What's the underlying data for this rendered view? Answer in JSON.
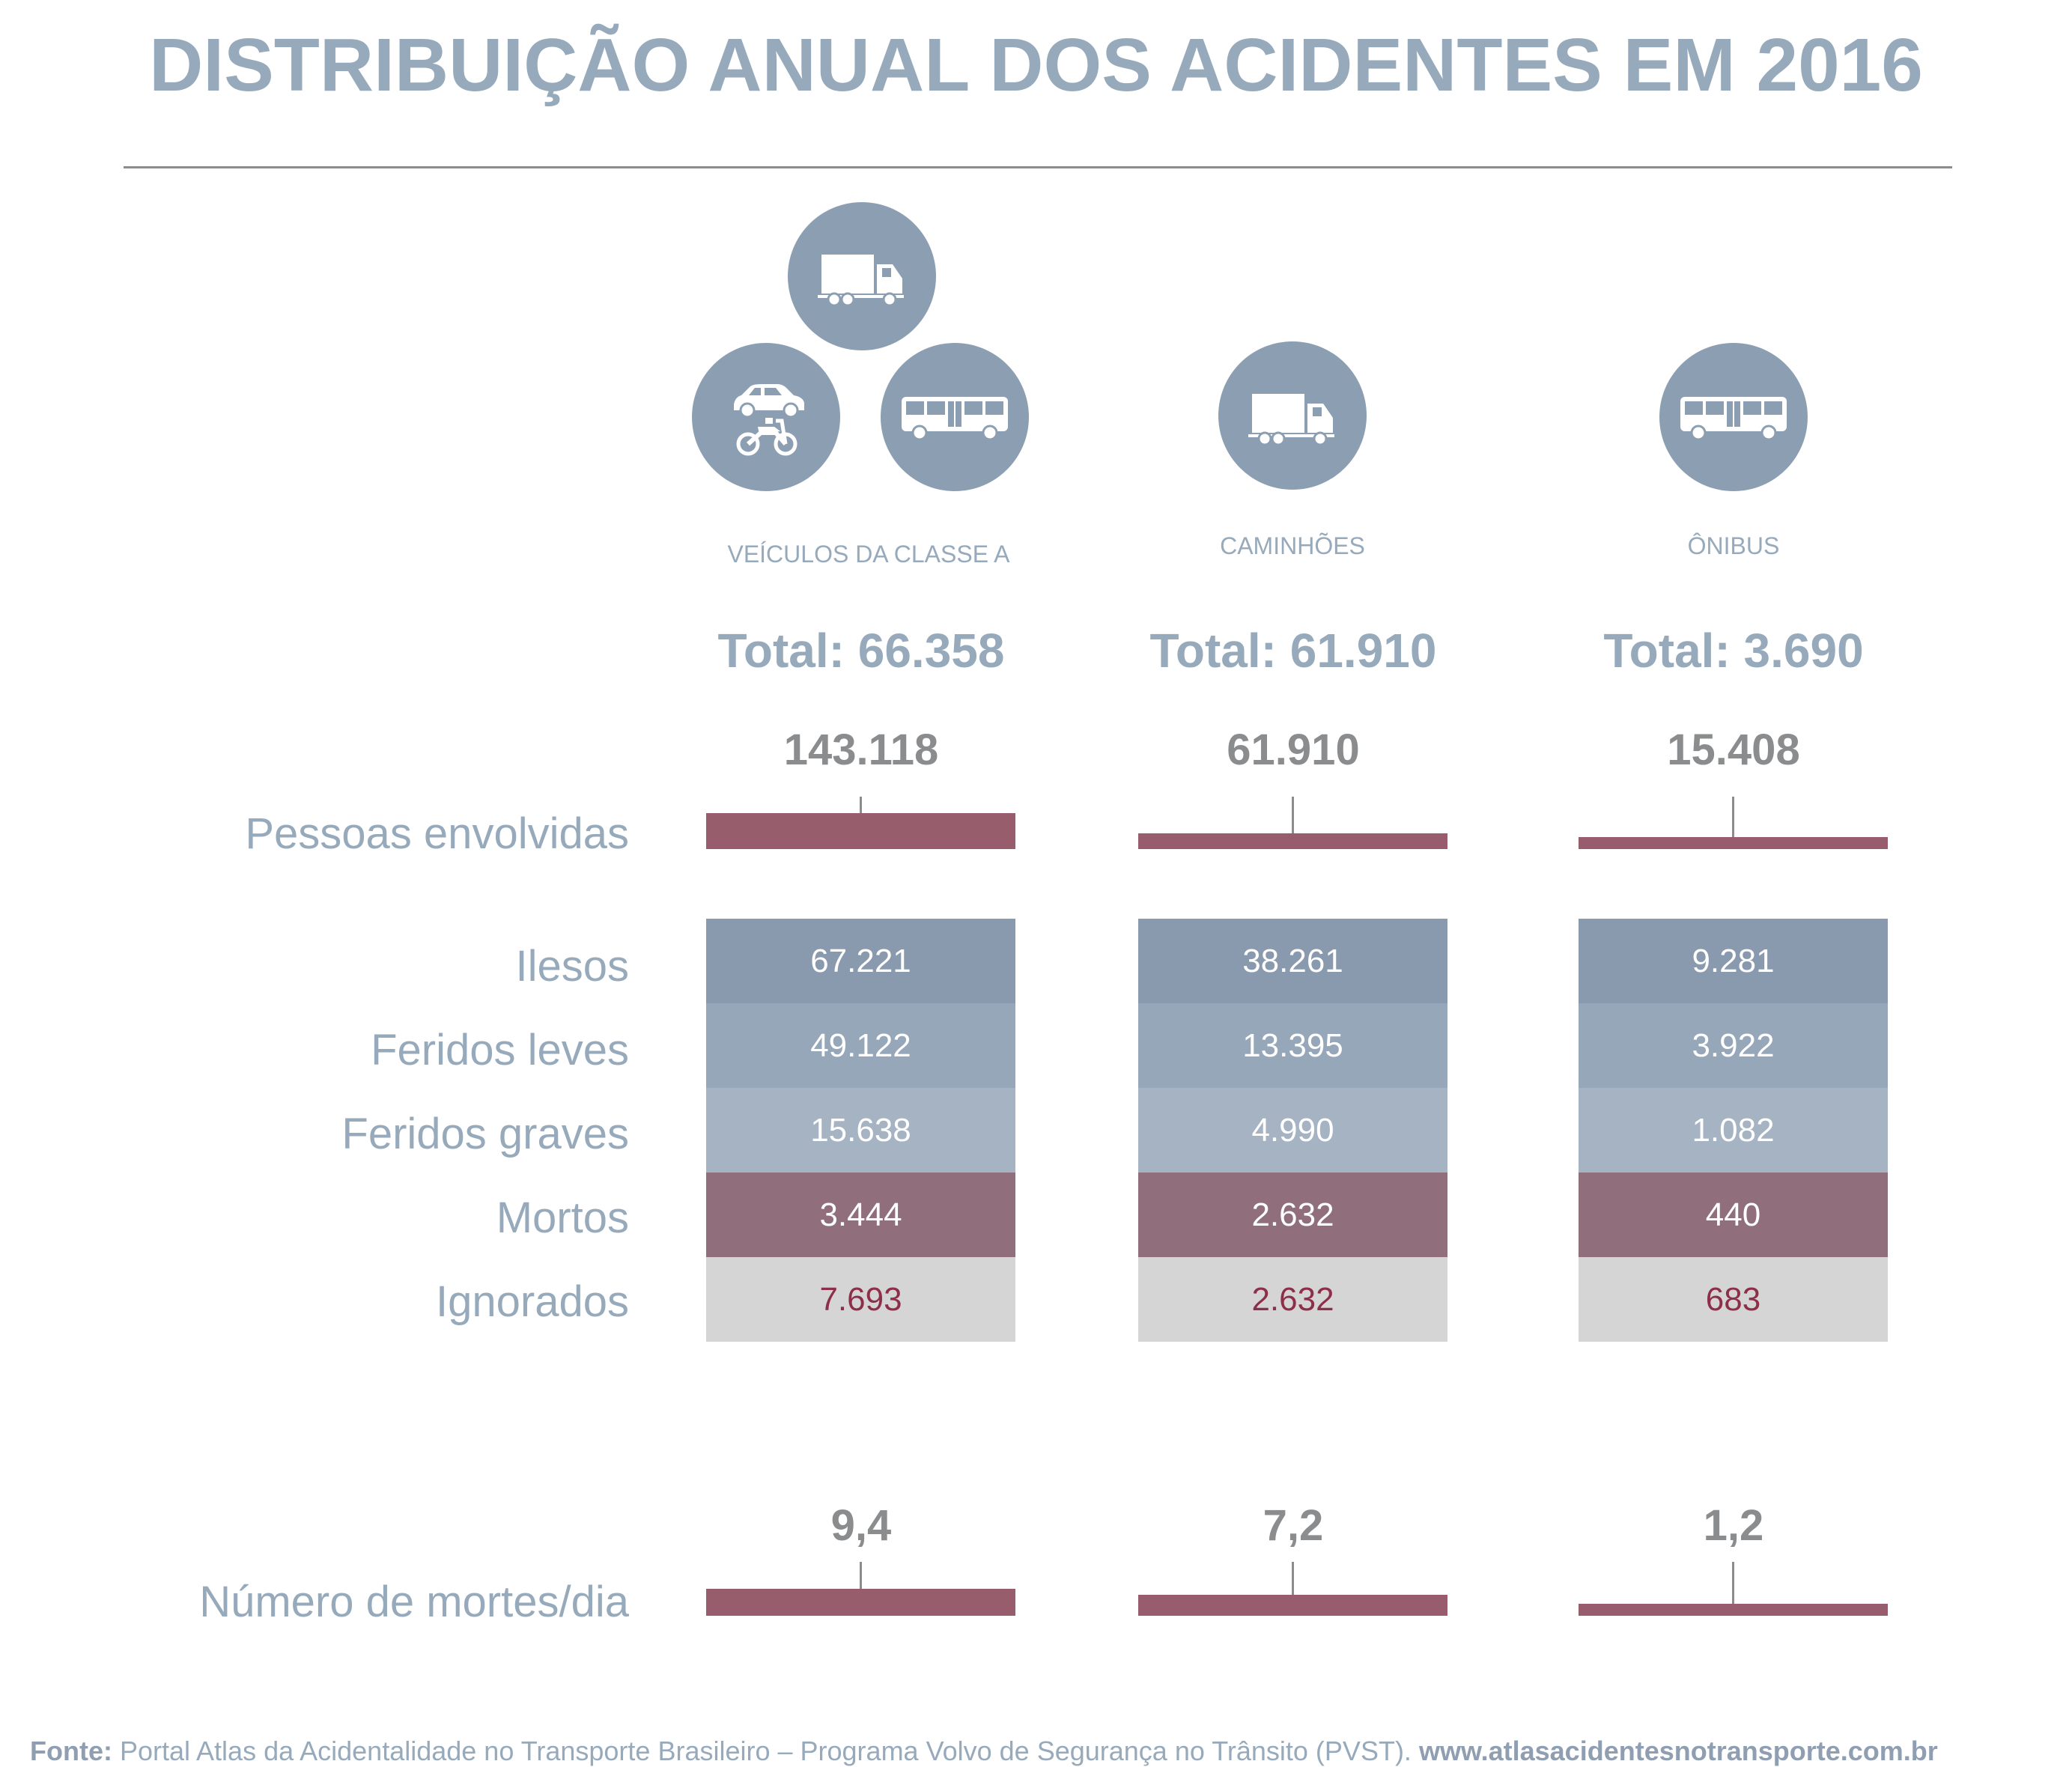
{
  "title": "DISTRIBUIÇÃO ANUAL DOS ACIDENTES EM 2016",
  "chart_data": {
    "type": "table",
    "categories": [
      "VEÍCULOS DA CLASSE A",
      "CAMINHÕES",
      "ÔNIBUS"
    ],
    "totals_label": [
      "Total: 66.358",
      "Total: 61.910",
      "Total: 3.690"
    ],
    "pessoas_envolvidas": {
      "label": "Pessoas envolvidas",
      "values": [
        143118,
        61910,
        15408
      ],
      "display": [
        "143.118",
        "61.910",
        "15.408"
      ]
    },
    "breakdown": {
      "rows": [
        {
          "label": "Ilesos",
          "display": [
            "67.221",
            "38.261",
            "9.281"
          ]
        },
        {
          "label": "Feridos leves",
          "display": [
            "49.122",
            "13.395",
            "3.922"
          ]
        },
        {
          "label": "Feridos graves",
          "display": [
            "15.638",
            "4.990",
            "1.082"
          ]
        },
        {
          "label": "Mortos",
          "display": [
            "3.444",
            "2.632",
            "440"
          ]
        },
        {
          "label": "Ignorados",
          "display": [
            "7.693",
            "2.632",
            "683"
          ]
        }
      ]
    },
    "mortes_dia": {
      "label": "Número de mortes/dia",
      "values": [
        9.4,
        7.2,
        1.2
      ],
      "display": [
        "9,4",
        "7,2",
        "1,2"
      ]
    }
  },
  "icons": {
    "classe_a": [
      "truck-icon",
      "car-icon",
      "motorcycle-icon",
      "bus-icon"
    ],
    "caminhoes": [
      "truck-icon"
    ],
    "onibus": [
      "bus-icon"
    ]
  },
  "colors": {
    "accent": "#97aabb",
    "bar": "#975d6c",
    "icon_circle": "#8c9fb2"
  },
  "source": {
    "prefix": "Fonte:",
    "text": " Portal Atlas da Acidentalidade no Transporte Brasileiro – Programa Volvo de Segurança no Trânsito (PVST). ",
    "url": "www.atlasacidentesnotransporte.com.br"
  }
}
